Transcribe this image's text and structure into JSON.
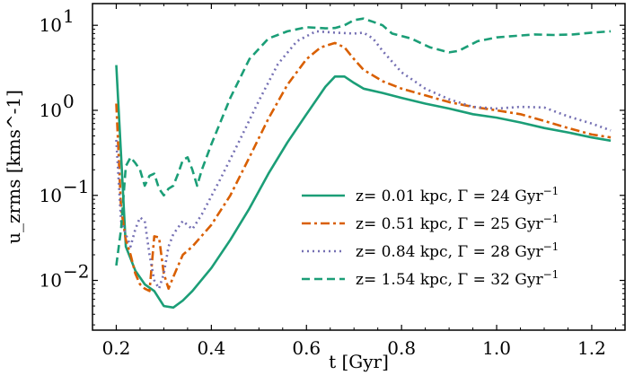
{
  "chart_data": {
    "type": "line",
    "xlabel": "t [Gyr]",
    "ylabel": "u_zrms [kms^-1]",
    "xlim": [
      0.15,
      1.27
    ],
    "ylim": [
      0.0026,
      18
    ],
    "yscale": "log",
    "xticks": [
      {
        "value": 0.2,
        "label": "0.2"
      },
      {
        "value": 0.4,
        "label": "0.4"
      },
      {
        "value": 0.6,
        "label": "0.6"
      },
      {
        "value": 0.8,
        "label": "0.8"
      },
      {
        "value": 1.0,
        "label": "1.0"
      },
      {
        "value": 1.2,
        "label": "1.2"
      }
    ],
    "yticks": [
      {
        "value": 0.01,
        "base": "10",
        "exp": "−2"
      },
      {
        "value": 0.1,
        "base": "10",
        "exp": "−1"
      },
      {
        "value": 1,
        "base": "10",
        "exp": "0"
      },
      {
        "value": 10,
        "base": "10",
        "exp": "1"
      }
    ],
    "legend_position": "lower-right",
    "series": [
      {
        "name": "z= 0.01 kpc, Γ = 24 Gyr⁻¹",
        "name_text": "z= 0.01 kpc, Γ = 24 Gyr",
        "name_sup": "−1",
        "color": "#1b9e77",
        "dash": "solid",
        "x": [
          0.2,
          0.21,
          0.22,
          0.24,
          0.26,
          0.28,
          0.3,
          0.32,
          0.34,
          0.36,
          0.4,
          0.44,
          0.48,
          0.52,
          0.56,
          0.6,
          0.64,
          0.66,
          0.68,
          0.7,
          0.72,
          0.76,
          0.8,
          0.85,
          0.9,
          0.95,
          1.0,
          1.05,
          1.1,
          1.15,
          1.2,
          1.24
        ],
        "y": [
          3.4,
          0.3,
          0.025,
          0.013,
          0.009,
          0.0075,
          0.005,
          0.0048,
          0.0058,
          0.0075,
          0.014,
          0.03,
          0.07,
          0.18,
          0.42,
          0.9,
          1.9,
          2.5,
          2.5,
          2.1,
          1.8,
          1.6,
          1.4,
          1.2,
          1.05,
          0.9,
          0.82,
          0.72,
          0.62,
          0.55,
          0.48,
          0.44
        ]
      },
      {
        "name": "z= 0.51 kpc, Γ = 25 Gyr⁻¹",
        "name_text": "z= 0.51 kpc, Γ = 25 Gyr",
        "name_sup": "−1",
        "color": "#d95f02",
        "dash": "dashdot",
        "x": [
          0.2,
          0.21,
          0.22,
          0.23,
          0.24,
          0.25,
          0.26,
          0.27,
          0.28,
          0.29,
          0.3,
          0.31,
          0.32,
          0.34,
          0.36,
          0.4,
          0.44,
          0.48,
          0.52,
          0.56,
          0.6,
          0.63,
          0.66,
          0.68,
          0.7,
          0.72,
          0.76,
          0.8,
          0.85,
          0.9,
          0.95,
          1.0,
          1.05,
          1.1,
          1.15,
          1.2,
          1.24
        ],
        "y": [
          1.2,
          0.07,
          0.03,
          0.02,
          0.012,
          0.009,
          0.008,
          0.0075,
          0.033,
          0.032,
          0.012,
          0.008,
          0.011,
          0.02,
          0.025,
          0.045,
          0.1,
          0.28,
          0.8,
          2.0,
          4.0,
          5.5,
          6.2,
          5.5,
          4.0,
          3.0,
          2.2,
          1.8,
          1.5,
          1.25,
          1.1,
          1.0,
          0.9,
          0.75,
          0.62,
          0.52,
          0.48
        ]
      },
      {
        "name": "z= 0.84 kpc, Γ = 28 Gyr⁻¹",
        "name_text": "z= 0.84 kpc, Γ = 28 Gyr",
        "name_sup": "−1",
        "color": "#7570b3",
        "dash": "dotted",
        "x": [
          0.2,
          0.21,
          0.22,
          0.23,
          0.24,
          0.25,
          0.26,
          0.27,
          0.28,
          0.29,
          0.3,
          0.31,
          0.32,
          0.34,
          0.36,
          0.38,
          0.42,
          0.46,
          0.5,
          0.54,
          0.58,
          0.62,
          0.66,
          0.7,
          0.72,
          0.74,
          0.76,
          0.8,
          0.85,
          0.9,
          0.95,
          1.0,
          1.05,
          1.1,
          1.15,
          1.2,
          1.24
        ],
        "y": [
          0.45,
          0.05,
          0.035,
          0.025,
          0.04,
          0.055,
          0.05,
          0.02,
          0.01,
          0.008,
          0.012,
          0.025,
          0.035,
          0.05,
          0.04,
          0.06,
          0.16,
          0.45,
          1.3,
          3.5,
          6.5,
          8.5,
          8.2,
          8.0,
          8.2,
          7.0,
          5.0,
          2.8,
          1.8,
          1.35,
          1.1,
          1.05,
          1.1,
          1.08,
          0.85,
          0.7,
          0.58
        ]
      },
      {
        "name": "z= 1.54 kpc, Γ = 32 Gyr⁻¹",
        "name_text": "z= 1.54 kpc, Γ = 32 Gyr",
        "name_sup": "−1",
        "color": "#1b9e77",
        "dash": "dashed",
        "x": [
          0.2,
          0.21,
          0.22,
          0.23,
          0.24,
          0.25,
          0.26,
          0.27,
          0.28,
          0.29,
          0.3,
          0.31,
          0.32,
          0.33,
          0.34,
          0.35,
          0.36,
          0.37,
          0.38,
          0.4,
          0.44,
          0.48,
          0.52,
          0.56,
          0.6,
          0.64,
          0.66,
          0.68,
          0.7,
          0.72,
          0.74,
          0.76,
          0.78,
          0.82,
          0.86,
          0.9,
          0.92,
          0.96,
          1.0,
          1.04,
          1.08,
          1.12,
          1.16,
          1.2,
          1.24
        ],
        "y": [
          0.015,
          0.04,
          0.22,
          0.28,
          0.24,
          0.2,
          0.13,
          0.17,
          0.18,
          0.12,
          0.1,
          0.12,
          0.13,
          0.18,
          0.26,
          0.28,
          0.2,
          0.13,
          0.2,
          0.4,
          1.4,
          4.0,
          7.0,
          8.5,
          9.5,
          9.2,
          9.3,
          10.0,
          11.5,
          12.0,
          11.0,
          10.0,
          8.0,
          7.0,
          5.5,
          4.8,
          5.0,
          6.5,
          7.2,
          7.5,
          7.8,
          7.7,
          7.8,
          8.2,
          8.5
        ]
      }
    ]
  }
}
